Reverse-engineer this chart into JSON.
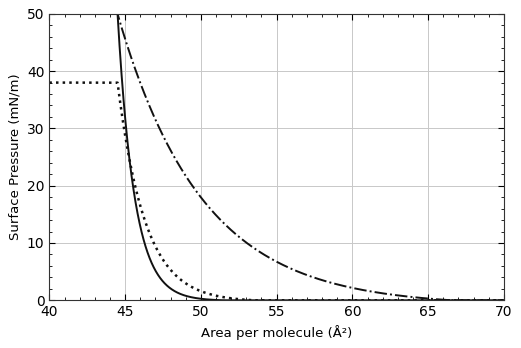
{
  "xlim": [
    40,
    70
  ],
  "ylim": [
    0,
    50
  ],
  "xlabel": "Area per molecule (Å²)",
  "ylabel": "Surface Pressure (mN/m)",
  "xticks": [
    40,
    45,
    50,
    55,
    60,
    65,
    70
  ],
  "yticks": [
    0,
    10,
    20,
    30,
    40,
    50
  ],
  "grid_color": "#c8c8c8",
  "line_color": "#111111",
  "background_color": "#ffffff",
  "solid_x0": 51.5,
  "solid_k": 0.9,
  "solid_ymax": 50.0,
  "solid_xmin": 44.5,
  "dotted_x0": 53.5,
  "dotted_k": 0.55,
  "dotted_ymax": 38.0,
  "dotted_xmin": 44.5,
  "dashdot_x0": 66.5,
  "dashdot_k": 0.18,
  "dashdot_ymax": 50.0,
  "dashdot_xmin": 44.5
}
